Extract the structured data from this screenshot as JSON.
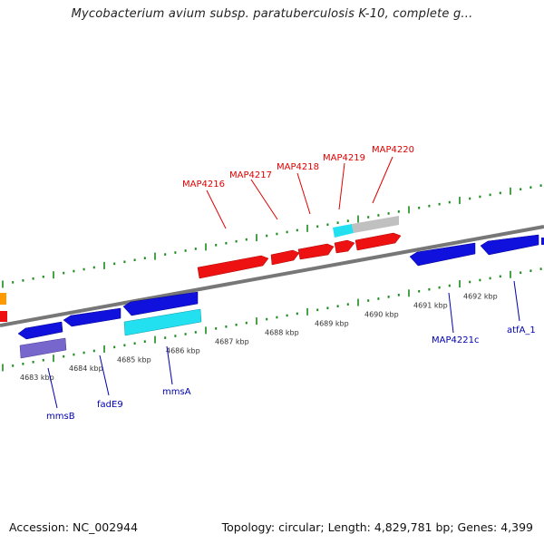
{
  "title": "Mycobacterium avium subsp. paratuberculosis K-10, complete g...",
  "footer": {
    "accession": "Accession: NC_002944",
    "summary": "Topology: circular; Length: 4,829,781 bp; Genes: 4,399"
  },
  "scale_labels": [
    "4683 kbp",
    "4684 kbp",
    "4685 kbp",
    "4686 kbp",
    "4687 kbp",
    "4688 kbp",
    "4689 kbp",
    "4690 kbp",
    "4691 kbp",
    "4692 kbp"
  ],
  "gene_labels_top": [
    "MAP4216",
    "MAP4217",
    "MAP4218",
    "MAP4219",
    "MAP4220"
  ],
  "gene_labels_bottom": [
    "mmsB",
    "fadE9",
    "mmsA",
    "MAP4221c",
    "atfA_1"
  ],
  "colors": {
    "forward": "#ee1111",
    "reverse": "#1111dd",
    "rna_cyan": "#22e0f0",
    "grey": "#c0c0c0",
    "violet": "#7766cc",
    "orange": "#ff9900",
    "ticks": "#1a8a1a",
    "backbone": "#777777"
  }
}
